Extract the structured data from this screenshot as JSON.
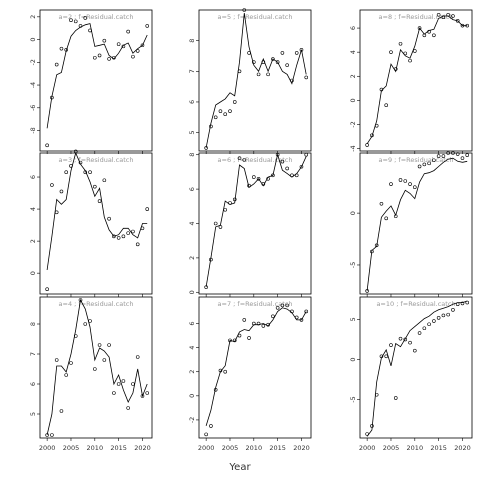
{
  "figure": {
    "xlabel": "Year"
  },
  "chart_data": [
    {
      "type": "line",
      "title": "a=2 ; f=Residual.catch",
      "xlim": [
        1998.5,
        2022
      ],
      "ylim": [
        -9.8,
        2.6
      ],
      "yticks": [
        2,
        0,
        -2,
        -4,
        -6,
        -8
      ],
      "x": [
        2000,
        2001,
        2002,
        2003,
        2004,
        2005,
        2006,
        2007,
        2008,
        2009,
        2010,
        2011,
        2012,
        2013,
        2014,
        2015,
        2016,
        2017,
        2018,
        2019,
        2020,
        2021
      ],
      "line": [
        -7.8,
        -5.0,
        -3.1,
        -2.9,
        -1.0,
        0.3,
        0.8,
        1.1,
        1.3,
        1.4,
        -0.6,
        -0.5,
        -0.4,
        -1.4,
        -1.7,
        -1.2,
        -0.5,
        -0.3,
        -1.2,
        -0.8,
        -0.5,
        0.4
      ],
      "points": [
        -9.3,
        -5.1,
        -2.2,
        -0.8,
        -0.9,
        1.7,
        1.6,
        1.2,
        1.9,
        0.8,
        -1.6,
        -1.4,
        -0.1,
        -1.7,
        -1.6,
        -0.4,
        -0.6,
        0.7,
        -1.5,
        -1.0,
        -0.5,
        1.2
      ]
    },
    {
      "type": "line",
      "title": "a=5 ; f=Residual.catch",
      "xlim": [
        1998.5,
        2022
      ],
      "ylim": [
        4.4,
        9.0
      ],
      "yticks": [
        8,
        7,
        6,
        5
      ],
      "x": [
        2000,
        2001,
        2002,
        2003,
        2004,
        2005,
        2006,
        2007,
        2008,
        2009,
        2010,
        2011,
        2012,
        2013,
        2014,
        2015,
        2016,
        2017,
        2018,
        2019,
        2020,
        2021
      ],
      "line": [
        4.5,
        5.3,
        5.9,
        6.0,
        6.1,
        6.3,
        6.2,
        7.3,
        8.9,
        7.8,
        7.2,
        7.0,
        7.4,
        7.0,
        7.4,
        7.3,
        7.0,
        6.9,
        6.6,
        7.2,
        7.7,
        6.9
      ],
      "points": [
        4.5,
        5.2,
        5.5,
        5.7,
        5.6,
        5.7,
        6.0,
        7.0,
        9.0,
        7.6,
        7.3,
        6.9,
        7.3,
        6.9,
        7.4,
        7.3,
        7.6,
        7.2,
        6.7,
        7.6,
        7.7,
        6.8
      ]
    },
    {
      "type": "line",
      "title": "a=8 ; f=Residual.catch",
      "xlim": [
        1998.5,
        2022
      ],
      "ylim": [
        -4.2,
        7.5
      ],
      "yticks": [
        6,
        4,
        2,
        0,
        -2,
        -4
      ],
      "x": [
        2000,
        2001,
        2002,
        2003,
        2004,
        2005,
        2006,
        2007,
        2008,
        2009,
        2010,
        2011,
        2012,
        2013,
        2014,
        2015,
        2016,
        2017,
        2018,
        2019,
        2020,
        2021
      ],
      "line": [
        -3.6,
        -3.0,
        -1.7,
        0.8,
        1.2,
        3.0,
        2.4,
        4.2,
        3.7,
        3.5,
        4.5,
        6.0,
        5.5,
        5.8,
        5.9,
        6.8,
        7.0,
        7.0,
        6.7,
        6.6,
        6.2,
        6.2
      ],
      "points": [
        -3.7,
        -2.9,
        -2.1,
        0.9,
        -0.4,
        4.0,
        2.6,
        4.7,
        3.9,
        3.3,
        4.1,
        6.0,
        5.4,
        5.7,
        5.4,
        7.1,
        6.9,
        7.1,
        7.0,
        6.6,
        6.2,
        6.2
      ]
    },
    {
      "type": "line",
      "title": "a=3 ; f=Residual.catch",
      "xlim": [
        1998.5,
        2022
      ],
      "ylim": [
        -1.3,
        7.5
      ],
      "yticks": [
        6,
        4,
        2,
        0
      ],
      "x": [
        2000,
        2001,
        2002,
        2003,
        2004,
        2005,
        2006,
        2007,
        2008,
        2009,
        2010,
        2011,
        2012,
        2013,
        2014,
        2015,
        2016,
        2017,
        2018,
        2019,
        2020,
        2021
      ],
      "line": [
        0.2,
        2.3,
        4.6,
        4.3,
        4.6,
        6.4,
        7.5,
        6.8,
        6.4,
        5.7,
        4.8,
        5.3,
        3.5,
        2.7,
        2.3,
        2.4,
        2.8,
        2.8,
        2.4,
        2.2,
        3.1,
        3.1
      ],
      "points": [
        -1.0,
        5.5,
        3.8,
        5.1,
        6.3,
        6.7,
        7.6,
        6.9,
        6.3,
        6.3,
        5.4,
        4.5,
        5.8,
        3.4,
        2.3,
        2.2,
        2.3,
        2.5,
        2.6,
        1.8,
        2.8,
        4.0
      ]
    },
    {
      "type": "line",
      "title": "a=6 ; f=Residual.catch",
      "xlim": [
        1998.5,
        2022
      ],
      "ylim": [
        -0.1,
        8.1
      ],
      "yticks": [
        8,
        6,
        4,
        2,
        0
      ],
      "x": [
        2000,
        2001,
        2002,
        2003,
        2004,
        2005,
        2006,
        2007,
        2008,
        2009,
        2010,
        2011,
        2012,
        2013,
        2014,
        2015,
        2016,
        2017,
        2018,
        2019,
        2020,
        2021
      ],
      "line": [
        0.3,
        2.0,
        3.8,
        3.9,
        5.3,
        5.1,
        5.2,
        7.4,
        7.2,
        6.1,
        6.3,
        6.6,
        6.2,
        6.7,
        6.8,
        8.0,
        7.1,
        6.9,
        6.7,
        6.9,
        7.3,
        7.9
      ],
      "points": [
        0.3,
        1.9,
        4.0,
        3.8,
        4.8,
        5.2,
        5.4,
        7.8,
        7.7,
        6.2,
        6.7,
        6.6,
        6.3,
        6.6,
        6.8,
        8.0,
        7.6,
        7.2,
        6.8,
        6.8,
        7.3,
        8.0
      ]
    },
    {
      "type": "line",
      "title": "a=9 ; f=Residual.catch",
      "xlim": [
        1998.5,
        2022
      ],
      "ylim": [
        -7.8,
        5.8
      ],
      "yticks": [
        0,
        -5
      ],
      "x": [
        2000,
        2001,
        2002,
        2003,
        2004,
        2005,
        2006,
        2007,
        2008,
        2009,
        2010,
        2011,
        2012,
        2013,
        2014,
        2015,
        2016,
        2017,
        2018,
        2019,
        2020,
        2021
      ],
      "line": [
        -7.5,
        -3.6,
        -3.2,
        -0.4,
        0.2,
        0.7,
        -0.2,
        1.3,
        2.2,
        1.9,
        1.4,
        3.0,
        3.8,
        3.9,
        4.1,
        4.5,
        4.9,
        5.2,
        5.3,
        5.0,
        4.9,
        5.0
      ],
      "points": [
        -7.5,
        -3.7,
        -3.1,
        0.9,
        -0.5,
        2.8,
        -0.3,
        3.2,
        3.1,
        2.8,
        2.5,
        4.5,
        4.7,
        4.8,
        5.1,
        5.5,
        5.5,
        5.8,
        5.8,
        5.7,
        5.3,
        5.6
      ]
    },
    {
      "type": "line",
      "title": "a=4 ; f=Residual.catch",
      "xlim": [
        1998.5,
        2022
      ],
      "ylim": [
        4.2,
        8.9
      ],
      "yticks": [
        8,
        7,
        6,
        5
      ],
      "x": [
        2000,
        2001,
        2002,
        2003,
        2004,
        2005,
        2006,
        2007,
        2008,
        2009,
        2010,
        2011,
        2012,
        2013,
        2014,
        2015,
        2016,
        2017,
        2018,
        2019,
        2020,
        2021
      ],
      "line": [
        4.3,
        5.0,
        6.6,
        6.6,
        6.4,
        7.0,
        7.8,
        8.8,
        8.5,
        7.9,
        6.8,
        7.2,
        7.1,
        6.9,
        6.0,
        6.3,
        5.8,
        5.4,
        5.7,
        6.5,
        5.6,
        6.0
      ],
      "points": [
        4.3,
        4.3,
        6.8,
        5.1,
        6.3,
        6.7,
        7.6,
        8.8,
        8.0,
        8.1,
        6.5,
        7.3,
        6.8,
        7.3,
        5.7,
        6.0,
        6.1,
        5.2,
        6.0,
        6.9,
        5.6,
        5.7
      ]
    },
    {
      "type": "line",
      "title": "a=7 ; f=Residual.catch",
      "xlim": [
        1998.5,
        2022
      ],
      "ylim": [
        -3.5,
        8.2
      ],
      "yticks": [
        6,
        4,
        2,
        0,
        -2
      ],
      "x": [
        2000,
        2001,
        2002,
        2003,
        2004,
        2005,
        2006,
        2007,
        2008,
        2009,
        2010,
        2011,
        2012,
        2013,
        2014,
        2015,
        2016,
        2017,
        2018,
        2019,
        2020,
        2021
      ],
      "line": [
        -2.5,
        -1.2,
        0.7,
        2.0,
        2.5,
        4.6,
        4.5,
        5.3,
        5.5,
        5.4,
        5.9,
        5.9,
        6.0,
        5.8,
        6.3,
        7.0,
        7.3,
        7.2,
        6.9,
        6.3,
        6.3,
        7.0
      ],
      "points": [
        -3.2,
        -2.5,
        0.5,
        2.1,
        2.0,
        4.6,
        4.6,
        5.0,
        6.3,
        4.8,
        6.0,
        6.0,
        5.8,
        5.9,
        6.6,
        7.3,
        7.5,
        7.5,
        7.0,
        6.5,
        6.3,
        7.0
      ]
    },
    {
      "type": "line",
      "title": "a=10 ; f=Residual.catch",
      "xlim": [
        1998.5,
        2022
      ],
      "ylim": [
        -9.8,
        7.8
      ],
      "yticks": [
        5,
        0,
        -5
      ],
      "x": [
        2000,
        2001,
        2002,
        2003,
        2004,
        2005,
        2006,
        2007,
        2008,
        2009,
        2010,
        2011,
        2012,
        2013,
        2014,
        2015,
        2016,
        2017,
        2018,
        2019,
        2020,
        2021
      ],
      "line": [
        -9.6,
        -8.8,
        -2.8,
        0.2,
        1.2,
        -0.8,
        2.0,
        1.6,
        2.6,
        3.6,
        4.1,
        4.6,
        5.1,
        5.4,
        5.9,
        6.2,
        6.4,
        6.6,
        6.9,
        7.1,
        7.1,
        7.3
      ],
      "points": [
        -9.3,
        -8.3,
        -4.4,
        0.4,
        0.4,
        1.8,
        -4.8,
        2.6,
        2.5,
        2.1,
        1.1,
        3.3,
        3.9,
        4.4,
        4.8,
        5.2,
        5.5,
        5.6,
        6.2,
        6.9,
        7.0,
        7.1
      ]
    }
  ]
}
